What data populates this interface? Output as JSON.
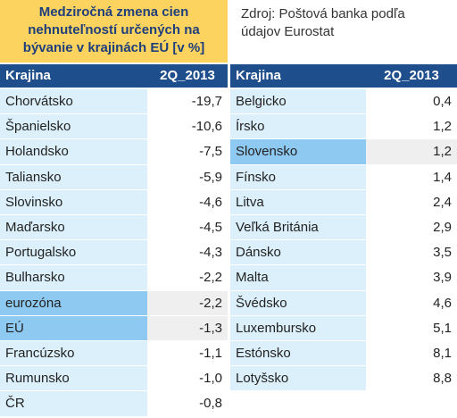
{
  "title": "Medziročná zmena cien nehnuteľností určených na bývanie v krajinách EÚ [v %]",
  "source": "Zdroj: Poštová banka podľa údajov Eurostat",
  "left_table": {
    "header": [
      "Krajina",
      "2Q_2013"
    ],
    "rows": [
      [
        "Chorvátsko",
        "-19,7"
      ],
      [
        "Španielsko",
        "-10,6"
      ],
      [
        "Holandsko",
        "-7,5"
      ],
      [
        "Taliansko",
        "-5,9"
      ],
      [
        "Slovinsko",
        "-4,6"
      ],
      [
        "Maďarsko",
        "-4,5"
      ],
      [
        "Portugalsko",
        "-4,3"
      ],
      [
        "Bulharsko",
        "-2,2"
      ],
      [
        "eurozóna",
        "-2,2"
      ],
      [
        "EÚ",
        "-1,3"
      ],
      [
        "Francúzsko",
        "-1,1"
      ],
      [
        "Rumunsko",
        "-1,0"
      ],
      [
        "ČR",
        "-0,8"
      ]
    ],
    "highlighted_rows": [
      8,
      9
    ]
  },
  "right_table": {
    "header": [
      "Krajina",
      "2Q_2013"
    ],
    "rows": [
      [
        "Belgicko",
        "0,4"
      ],
      [
        "Írsko",
        "1,2"
      ],
      [
        "Slovensko",
        "1,2"
      ],
      [
        "Fínsko",
        "1,4"
      ],
      [
        "Litva",
        "2,4"
      ],
      [
        "Veľká Británia",
        "2,9"
      ],
      [
        "Dánsko",
        "3,5"
      ],
      [
        "Malta",
        "3,9"
      ],
      [
        "Švédsko",
        "4,6"
      ],
      [
        "Luxembursko",
        "5,1"
      ],
      [
        "Estónsko",
        "8,1"
      ],
      [
        "Lotyšsko",
        "8,8"
      ]
    ],
    "highlighted_rows": [
      2
    ]
  }
}
